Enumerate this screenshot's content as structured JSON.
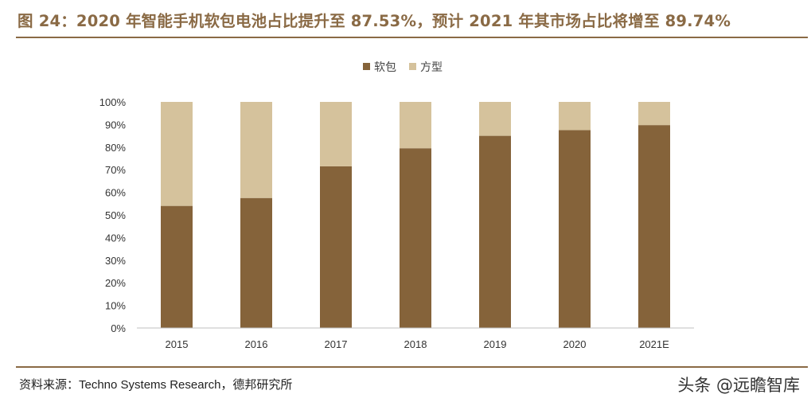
{
  "title": "图 24：2020 年智能手机软包电池占比提升至 87.53%，预计 2021 年其市场占比将增至 89.74%",
  "source": "资料来源：Techno Systems Research，德邦研究所",
  "watermark": "头条 @远瞻智库",
  "colors": {
    "accent": "#8a6a45",
    "soft_pack": "#85633a",
    "prismatic": "#d5c29c"
  },
  "chart_data": {
    "type": "bar",
    "stacked": true,
    "categories": [
      "2015",
      "2016",
      "2017",
      "2018",
      "2019",
      "2020",
      "2021E"
    ],
    "series": [
      {
        "name": "软包",
        "values": [
          54,
          57.5,
          71.5,
          79.5,
          85,
          87.53,
          89.74
        ]
      },
      {
        "name": "方型",
        "values": [
          46,
          42.5,
          28.5,
          20.5,
          15,
          12.47,
          10.26
        ]
      }
    ],
    "y_ticks": [
      "0%",
      "10%",
      "20%",
      "30%",
      "40%",
      "50%",
      "60%",
      "70%",
      "80%",
      "90%",
      "100%"
    ],
    "ylim": [
      0,
      100
    ],
    "legend_position": "top-center",
    "grid": false
  }
}
